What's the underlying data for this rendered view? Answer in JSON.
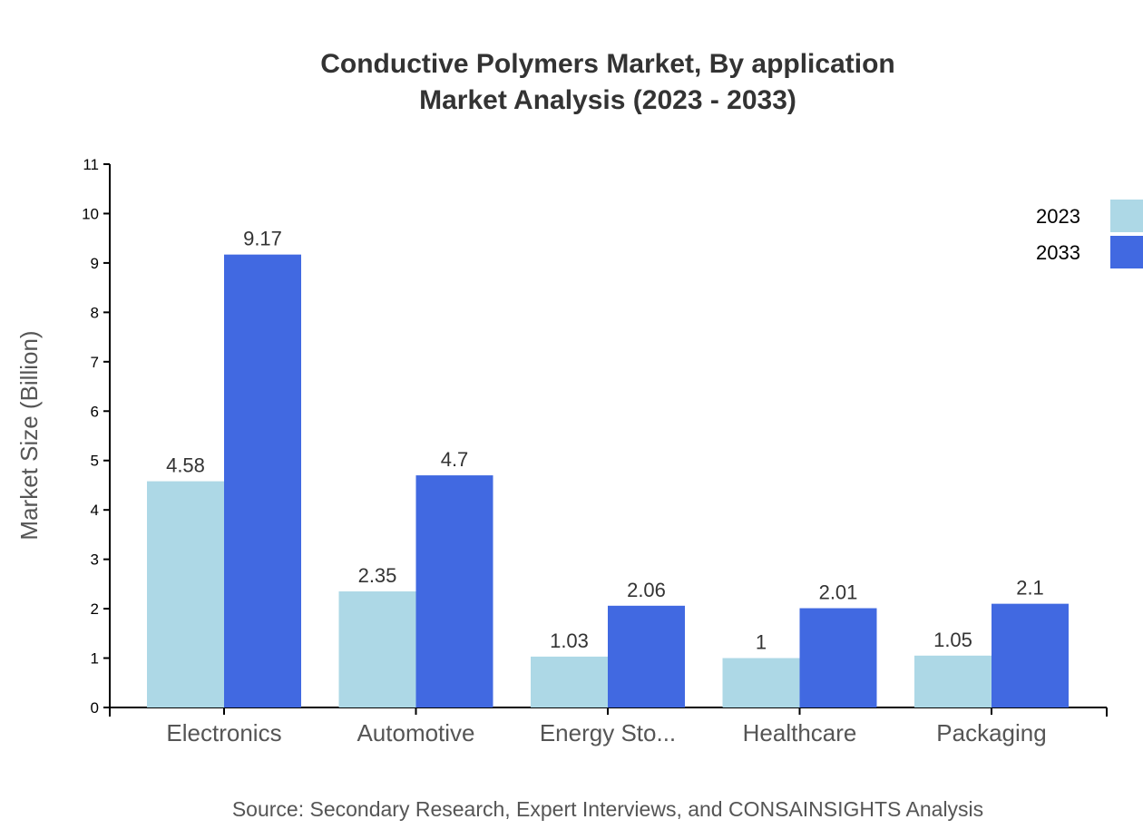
{
  "chart_data": {
    "type": "bar",
    "title": "Conductive Polymers Market, By application",
    "subtitle": "Market Analysis (2023 - 2033)",
    "xlabel": "",
    "ylabel": "Market Size (Billion)",
    "ylim": [
      0,
      11
    ],
    "yticks": [
      0,
      1,
      2,
      3,
      4,
      5,
      6,
      7,
      8,
      9,
      10,
      11
    ],
    "categories": [
      "Electronics",
      "Automotive",
      "Energy Sto...",
      "Healthcare",
      "Packaging"
    ],
    "series": [
      {
        "name": "2023",
        "color": "#ADD8E6",
        "values": [
          4.58,
          2.35,
          1.03,
          1,
          1.05
        ]
      },
      {
        "name": "2033",
        "color": "#4169E1",
        "values": [
          9.17,
          4.7,
          2.06,
          2.01,
          2.1
        ]
      }
    ],
    "legend_position": "top-right",
    "grid": false,
    "source": "Source: Secondary Research, Expert Interviews, and CONSAINSIGHTS Analysis"
  }
}
